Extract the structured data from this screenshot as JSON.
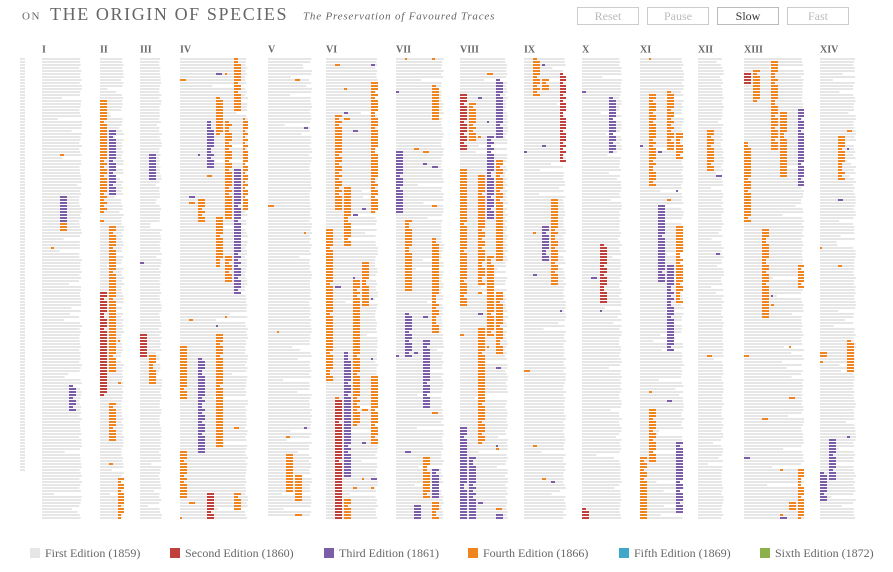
{
  "header": {
    "prefix": "ON",
    "title": "THE ORIGIN OF SPECIES",
    "subtitle": "The Preservation of Favoured Traces"
  },
  "buttons": [
    {
      "label": "Reset",
      "active": false
    },
    {
      "label": "Pause",
      "active": false
    },
    {
      "label": "Slow",
      "active": true
    },
    {
      "label": "Fast",
      "active": false
    }
  ],
  "chapters": [
    "I",
    "II",
    "III",
    "IV",
    "V",
    "VI",
    "VII",
    "VIII",
    "IX",
    "X",
    "XI",
    "XII",
    "XIII",
    "XIV"
  ],
  "legend": [
    {
      "label": "First Edition (1859)",
      "color": "#e6e6e6"
    },
    {
      "label": "Second Edition (1860)",
      "color": "#c0413b"
    },
    {
      "label": "Third Edition (1861)",
      "color": "#7b5ea7"
    },
    {
      "label": "Fourth Edition (1866)",
      "color": "#f0841f"
    },
    {
      "label": "Fifth Edition (1869)",
      "color": "#3fa7c9"
    },
    {
      "label": "Sixth Edition (1872)",
      "color": "#8cb04a"
    }
  ]
}
